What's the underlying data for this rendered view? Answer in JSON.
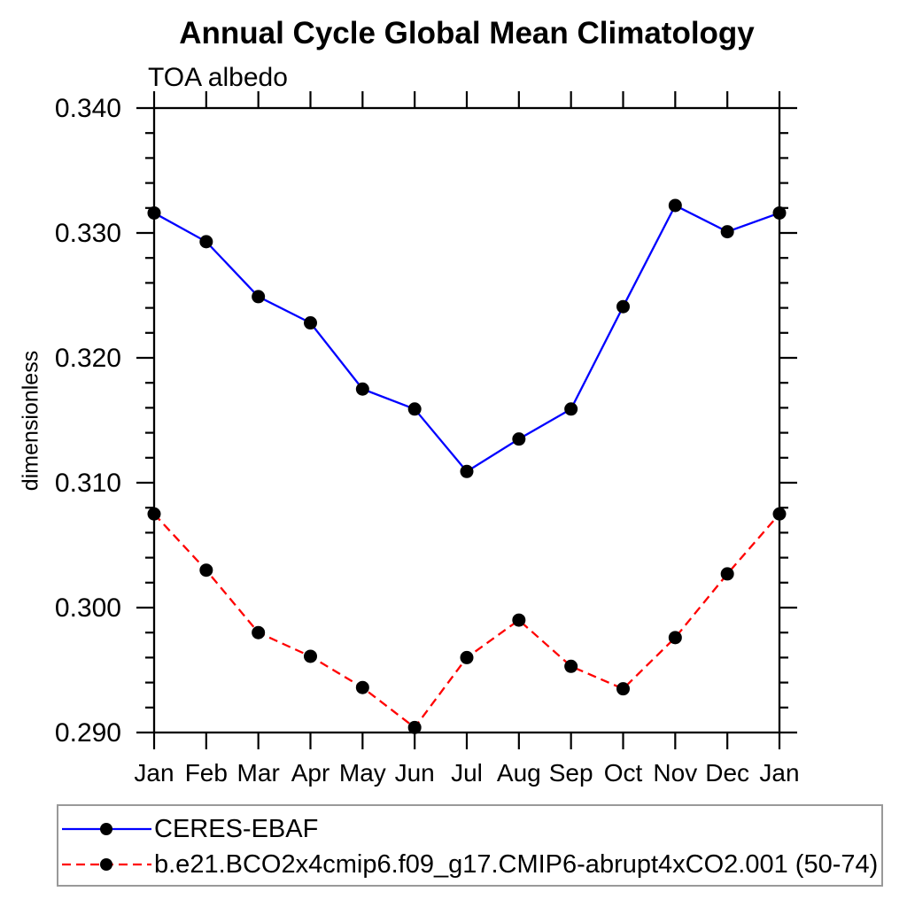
{
  "header": {
    "title": "Annual Cycle Global Mean Climatology",
    "subtitle": "TOA albedo"
  },
  "y_axis": {
    "label": "dimensionless"
  },
  "x_axis": {
    "tick_labels": [
      "Jan",
      "Feb",
      "Mar",
      "Apr",
      "May",
      "Jun",
      "Jul",
      "Aug",
      "Sep",
      "Oct",
      "Nov",
      "Dec",
      "Jan"
    ]
  },
  "legend": {
    "border_color": "#999999",
    "marker_color": "#000000",
    "items": [
      {
        "label": "CERES-EBAF",
        "color": "#0000ff",
        "line_style": "solid"
      },
      {
        "label": "b.e21.BCO2x4cmip6.f09_g17.CMIP6-abrupt4xCO2.001 (50-74)",
        "color": "#ff0000",
        "line_style": "dashed"
      }
    ]
  },
  "chart_data": {
    "type": "line",
    "title": "Annual Cycle Global Mean Climatology",
    "subtitle": "TOA albedo",
    "ylabel": "dimensionless",
    "xlabel": "",
    "x": [
      "Jan",
      "Feb",
      "Mar",
      "Apr",
      "May",
      "Jun",
      "Jul",
      "Aug",
      "Sep",
      "Oct",
      "Nov",
      "Dec",
      "Jan"
    ],
    "ylim": [
      0.29,
      0.34
    ],
    "ytick_step": 0.01,
    "yminor_step": 0.002,
    "grid": false,
    "legend_position": "bottom-left-box",
    "frame": "box-with-outward-ticks",
    "series": [
      {
        "name": "CERES-EBAF",
        "color": "#0000ff",
        "line_style": "solid",
        "marker": "filled-circle",
        "marker_color": "#000000",
        "values": [
          0.3316,
          0.3293,
          0.3249,
          0.3228,
          0.3175,
          0.3159,
          0.3109,
          0.3135,
          0.3159,
          0.3241,
          0.3322,
          0.3301,
          0.3316
        ]
      },
      {
        "name": "b.e21.BCO2x4cmip6.f09_g17.CMIP6-abrupt4xCO2.001 (50-74)",
        "color": "#ff0000",
        "line_style": "dashed",
        "marker": "filled-circle",
        "marker_color": "#000000",
        "values": [
          0.3075,
          0.303,
          0.298,
          0.2961,
          0.2936,
          0.2904,
          0.296,
          0.299,
          0.2953,
          0.2935,
          0.2976,
          0.3027,
          0.3075
        ]
      }
    ]
  }
}
